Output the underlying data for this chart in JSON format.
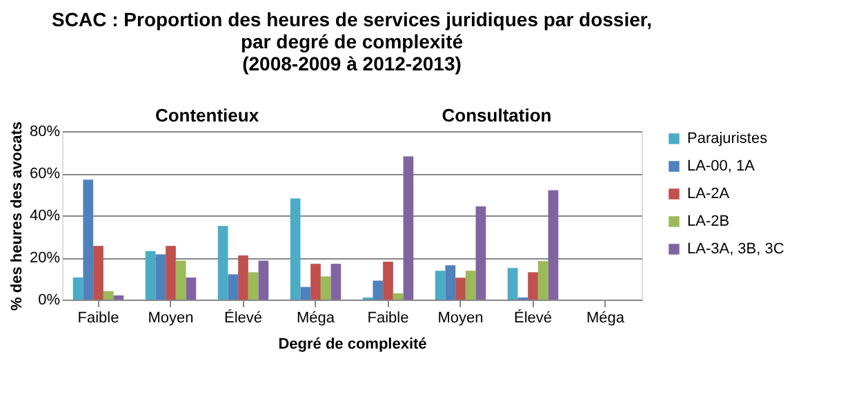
{
  "chart_data": {
    "type": "bar",
    "title": "SCAC : Proportion des heures de services juridiques par dossier,\npar degré de complexité\n(2008-2009 à 2012-2013)",
    "xlabel": "Degré de complexité",
    "ylabel": "% des heures des avocats",
    "annotations": [
      "Contentieux",
      "Consultation"
    ],
    "categories": [
      "Faible",
      "Moyen",
      "Élevé",
      "Méga",
      "Faible",
      "Moyen",
      "Élevé",
      "Méga"
    ],
    "series": [
      {
        "name": "Parajuristes",
        "color": "#4bacc6",
        "values": [
          10.5,
          23,
          35,
          48,
          1,
          13.7,
          15,
          null
        ]
      },
      {
        "name": "LA-00, 1A",
        "color": "#4f81bd",
        "values": [
          57,
          21.5,
          12,
          6,
          9,
          16.3,
          1,
          null
        ]
      },
      {
        "name": "LA-2A",
        "color": "#c0504d",
        "values": [
          25.5,
          25.5,
          21,
          17,
          18,
          10.4,
          13,
          null
        ]
      },
      {
        "name": "LA-2B",
        "color": "#9bbb59",
        "values": [
          4,
          18.5,
          13,
          11,
          3,
          13.7,
          18.3,
          null
        ]
      },
      {
        "name": "LA-3A, 3B, 3C",
        "color": "#8064a2",
        "values": [
          2,
          10.5,
          18.5,
          17,
          68,
          44.3,
          52,
          null
        ]
      }
    ],
    "ylim": [
      0,
      80
    ],
    "yticks": [
      {
        "value": 0,
        "label": "0%"
      },
      {
        "value": 20,
        "label": "20%"
      },
      {
        "value": 40,
        "label": "40%"
      },
      {
        "value": 60,
        "label": "60%"
      },
      {
        "value": 80,
        "label": "80%"
      }
    ],
    "grid": "y",
    "legend": "right"
  }
}
